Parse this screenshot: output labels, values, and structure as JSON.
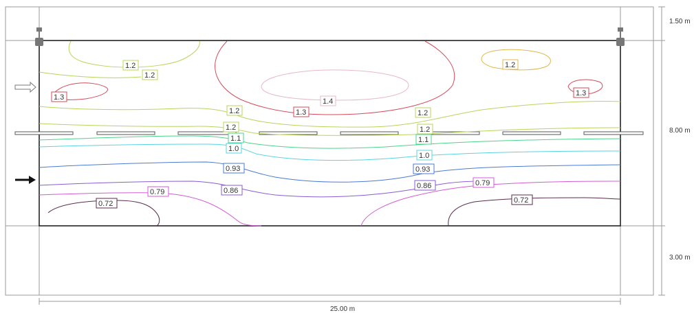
{
  "dimensions": {
    "top_offset": "1.50 m",
    "height": "8.00 m",
    "bottom_offset": "3.00 m",
    "width": "25.00 m"
  },
  "colors": {
    "c072": "#5a2a4a",
    "c079": "#d45ad4",
    "c086": "#8a5ad4",
    "c093": "#4a7ad4",
    "c10": "#5ad4e0",
    "c11": "#4ad48a",
    "c12": "#b8d45a",
    "c13": "#d44a5a",
    "c14": "#e8b8c8",
    "frame": "#333333",
    "guide": "#9a9a9a"
  },
  "contour_labels": [
    {
      "id": "l12a",
      "text": "1.2"
    },
    {
      "id": "l12b",
      "text": "1.2"
    },
    {
      "id": "l12c",
      "text": "1.2"
    },
    {
      "id": "l13a",
      "text": "1.3"
    },
    {
      "id": "l14",
      "text": "1.4"
    },
    {
      "id": "l13b",
      "text": "1.3"
    },
    {
      "id": "l12d",
      "text": "1.2"
    },
    {
      "id": "l12e",
      "text": "1.2"
    },
    {
      "id": "l12f",
      "text": "1.2"
    },
    {
      "id": "l11a",
      "text": "1.1"
    },
    {
      "id": "l11b",
      "text": "1.1"
    },
    {
      "id": "l10a",
      "text": "1.0"
    },
    {
      "id": "l10b",
      "text": "1.0"
    },
    {
      "id": "l093a",
      "text": "0.93"
    },
    {
      "id": "l093b",
      "text": "0.93"
    },
    {
      "id": "l086a",
      "text": "0.86"
    },
    {
      "id": "l086b",
      "text": "0.86"
    },
    {
      "id": "l079a",
      "text": "0.79"
    },
    {
      "id": "l079b",
      "text": "0.79"
    },
    {
      "id": "l072a",
      "text": "0.72"
    },
    {
      "id": "l072b",
      "text": "0.72"
    },
    {
      "id": "l13c",
      "text": "1.3"
    },
    {
      "id": "l12g",
      "text": "1.2"
    }
  ]
}
